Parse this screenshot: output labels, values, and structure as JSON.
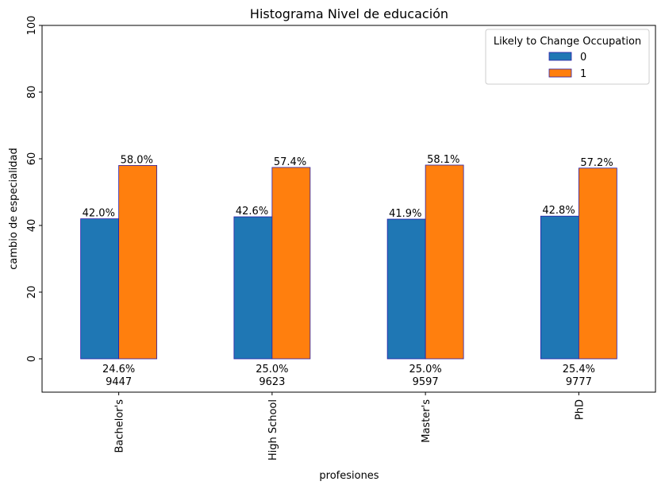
{
  "chart_data": {
    "type": "bar",
    "title": "Histograma Nivel de educación",
    "xlabel": "profesiones",
    "ylabel": "cambio de especialidad",
    "ylim": [
      -10,
      100
    ],
    "yticks": [
      0,
      20,
      40,
      60,
      80,
      100
    ],
    "grid": false,
    "categories": [
      "Bachelor's",
      "High School",
      "Master's",
      "PhD"
    ],
    "category_notes": [
      {
        "percent": "24.6%",
        "count": "9447"
      },
      {
        "percent": "25.0%",
        "count": "9623"
      },
      {
        "percent": "25.0%",
        "count": "9597"
      },
      {
        "percent": "25.4%",
        "count": "9777"
      }
    ],
    "series": [
      {
        "name": "0",
        "color": "#1f77b4",
        "values": [
          42.0,
          42.6,
          41.9,
          42.8
        ],
        "labels": [
          "42.0%",
          "42.6%",
          "41.9%",
          "42.8%"
        ]
      },
      {
        "name": "1",
        "color": "#ff7f0e",
        "values": [
          58.0,
          57.4,
          58.1,
          57.2
        ],
        "labels": [
          "58.0%",
          "57.4%",
          "58.1%",
          "57.2%"
        ]
      }
    ],
    "bar_edge_color": "#2b1fa8",
    "legend": {
      "title": "Likely to Change Occupation",
      "placement": "top-right"
    }
  }
}
